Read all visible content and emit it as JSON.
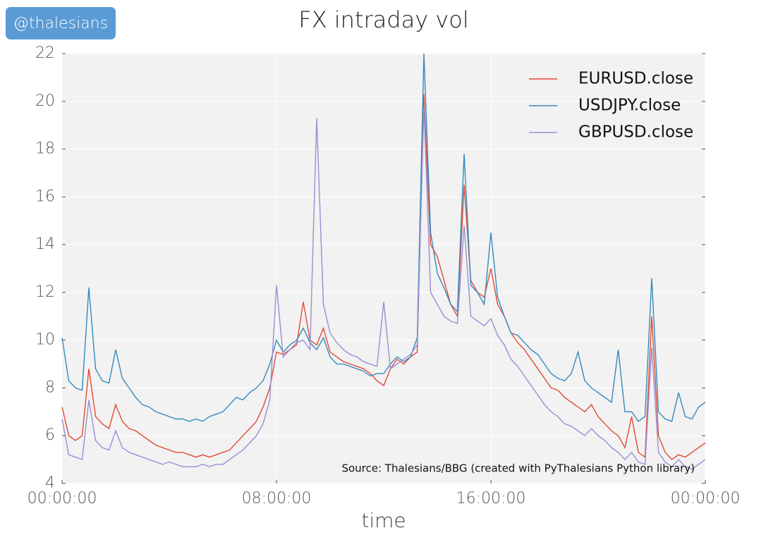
{
  "chart_data": {
    "type": "line",
    "title": "FX intraday vol",
    "xlabel": "time",
    "watermark": "@thalesians",
    "annotation": "Source: Thalesians/BBG (created with PyThalesians Python library)",
    "x": [
      0,
      0.25,
      0.5,
      0.75,
      1,
      1.25,
      1.5,
      1.75,
      2,
      2.25,
      2.5,
      2.75,
      3,
      3.25,
      3.5,
      3.75,
      4,
      4.25,
      4.5,
      4.75,
      5,
      5.25,
      5.5,
      5.75,
      6,
      6.25,
      6.5,
      6.75,
      7,
      7.25,
      7.5,
      7.75,
      8,
      8.25,
      8.5,
      8.75,
      9,
      9.25,
      9.5,
      9.75,
      10,
      10.25,
      10.5,
      10.75,
      11,
      11.25,
      11.5,
      11.75,
      12,
      12.25,
      12.5,
      12.75,
      13,
      13.25,
      13.5,
      13.75,
      14,
      14.25,
      14.5,
      14.75,
      15,
      15.25,
      15.5,
      15.75,
      16,
      16.25,
      16.5,
      16.75,
      17,
      17.25,
      17.5,
      17.75,
      18,
      18.25,
      18.5,
      18.75,
      19,
      19.25,
      19.5,
      19.75,
      20,
      20.25,
      20.5,
      20.75,
      21,
      21.25,
      21.5,
      21.75,
      22,
      22.25,
      22.5,
      22.75,
      23,
      23.25,
      23.5,
      23.75,
      24
    ],
    "series": [
      {
        "name": "EURUSD.close",
        "color": "#e24a33",
        "values": [
          7.2,
          6.0,
          5.8,
          6.0,
          8.8,
          6.8,
          6.5,
          6.3,
          7.3,
          6.6,
          6.3,
          6.2,
          6.0,
          5.8,
          5.6,
          5.5,
          5.4,
          5.3,
          5.3,
          5.2,
          5.1,
          5.2,
          5.1,
          5.2,
          5.3,
          5.4,
          5.7,
          6.0,
          6.3,
          6.6,
          7.2,
          8.0,
          9.5,
          9.4,
          9.6,
          9.8,
          11.6,
          10.0,
          9.8,
          10.5,
          9.5,
          9.3,
          9.1,
          9.0,
          8.9,
          8.8,
          8.6,
          8.3,
          8.1,
          8.8,
          9.2,
          9.0,
          9.3,
          9.5,
          20.3,
          14.0,
          13.5,
          12.5,
          11.5,
          11.0,
          16.5,
          12.5,
          12.0,
          11.8,
          13.0,
          11.5,
          11.0,
          10.3,
          9.9,
          9.6,
          9.2,
          8.8,
          8.4,
          8.0,
          7.9,
          7.6,
          7.4,
          7.2,
          7.0,
          7.3,
          6.8,
          6.5,
          6.2,
          6.0,
          5.5,
          6.8,
          5.3,
          5.1,
          11.0,
          6.0,
          5.3,
          5.0,
          5.2,
          5.1,
          5.3,
          5.5,
          5.7
        ]
      },
      {
        "name": "USDJPY.close",
        "color": "#348abd",
        "values": [
          10.1,
          8.3,
          8.0,
          7.9,
          12.2,
          8.8,
          8.3,
          8.2,
          9.6,
          8.4,
          8.0,
          7.6,
          7.3,
          7.2,
          7.0,
          6.9,
          6.8,
          6.7,
          6.7,
          6.6,
          6.7,
          6.6,
          6.8,
          6.9,
          7.0,
          7.3,
          7.6,
          7.5,
          7.8,
          8.0,
          8.3,
          9.0,
          10.0,
          9.5,
          9.8,
          10.0,
          10.5,
          9.9,
          9.6,
          10.1,
          9.3,
          9.0,
          9.0,
          8.9,
          8.8,
          8.7,
          8.5,
          8.6,
          8.6,
          9.0,
          9.3,
          9.1,
          9.3,
          10.1,
          22.0,
          14.5,
          12.8,
          12.2,
          11.5,
          11.2,
          17.8,
          12.3,
          12.0,
          11.5,
          14.5,
          11.8,
          11.0,
          10.3,
          10.2,
          9.9,
          9.6,
          9.4,
          9.0,
          8.6,
          8.4,
          8.3,
          8.6,
          9.5,
          8.3,
          8.0,
          7.8,
          7.6,
          7.4,
          9.6,
          7.0,
          7.0,
          6.6,
          6.8,
          12.6,
          7.0,
          6.7,
          6.6,
          7.8,
          6.8,
          6.7,
          7.2,
          7.4
        ]
      },
      {
        "name": "GBPUSD.close",
        "color": "#988ed5",
        "values": [
          6.7,
          5.2,
          5.1,
          5.0,
          7.5,
          5.8,
          5.5,
          5.4,
          6.2,
          5.5,
          5.3,
          5.2,
          5.1,
          5.0,
          4.9,
          4.8,
          4.9,
          4.8,
          4.7,
          4.7,
          4.7,
          4.8,
          4.7,
          4.8,
          4.8,
          5.0,
          5.2,
          5.4,
          5.7,
          6.0,
          6.5,
          7.5,
          12.3,
          9.3,
          9.6,
          9.9,
          10.0,
          9.6,
          19.3,
          11.5,
          10.3,
          9.9,
          9.6,
          9.4,
          9.3,
          9.1,
          9.0,
          8.9,
          11.6,
          8.8,
          9.0,
          9.2,
          9.4,
          9.8,
          19.8,
          12.0,
          11.5,
          11.0,
          10.8,
          10.7,
          14.8,
          11.0,
          10.8,
          10.6,
          10.9,
          10.2,
          9.8,
          9.2,
          8.9,
          8.5,
          8.1,
          7.7,
          7.3,
          7.0,
          6.8,
          6.5,
          6.4,
          6.2,
          6.0,
          6.3,
          6.0,
          5.8,
          5.5,
          5.3,
          5.0,
          5.3,
          4.9,
          4.8,
          9.7,
          5.3,
          4.9,
          4.7,
          5.0,
          4.7,
          4.6,
          4.8,
          5.0
        ]
      }
    ],
    "xlim": [
      0,
      24
    ],
    "xticks": [
      {
        "value": 0,
        "label": "00:00:00"
      },
      {
        "value": 8,
        "label": "08:00:00"
      },
      {
        "value": 16,
        "label": "16:00:00"
      },
      {
        "value": 24,
        "label": "00:00:00"
      }
    ],
    "ylim": [
      4,
      22
    ],
    "yticks": [
      4,
      6,
      8,
      10,
      12,
      14,
      16,
      18,
      20,
      22
    ],
    "grid": true,
    "legend": "upper right"
  }
}
